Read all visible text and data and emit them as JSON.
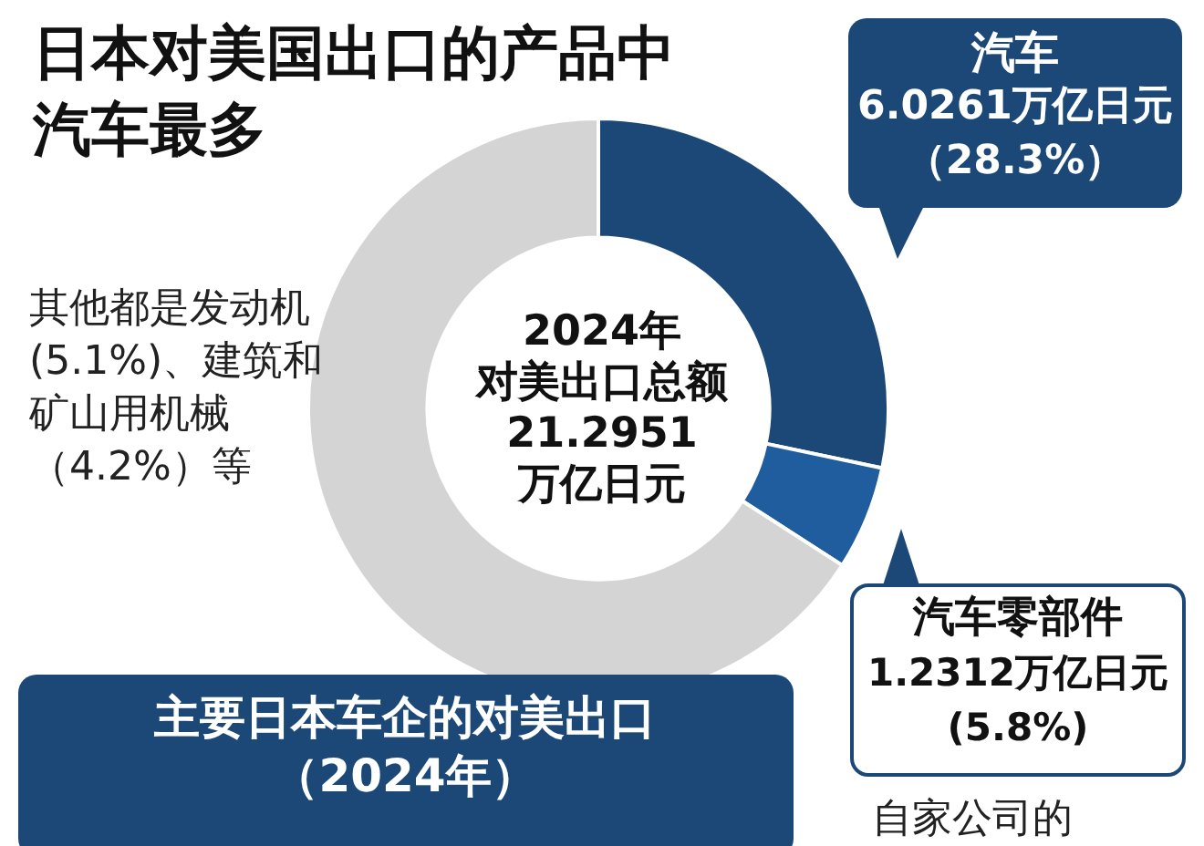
{
  "chart_data": {
    "type": "donut",
    "title": "日本对美国出口的产品中汽车最多",
    "categories": [
      "汽车",
      "汽车零部件",
      null
    ],
    "values": [
      28.3,
      5.8,
      65.9
    ],
    "colors": [
      "#1c4878",
      "#1f5d9e",
      "#d4d4d4"
    ],
    "value_labels": [
      "6.0261万亿日元（28.3%）",
      "1.2312万亿日元(5.8%)",
      null
    ],
    "annotations": [
      "2024年",
      "对美出口总额",
      "21.2951",
      "万亿日元",
      "其他都是发动机(5.1%)、建筑和矿山用机械（4.2%）等",
      "主要日本车企的对美出口（2024年）",
      "自家公司的"
    ],
    "legend": false
  }
}
